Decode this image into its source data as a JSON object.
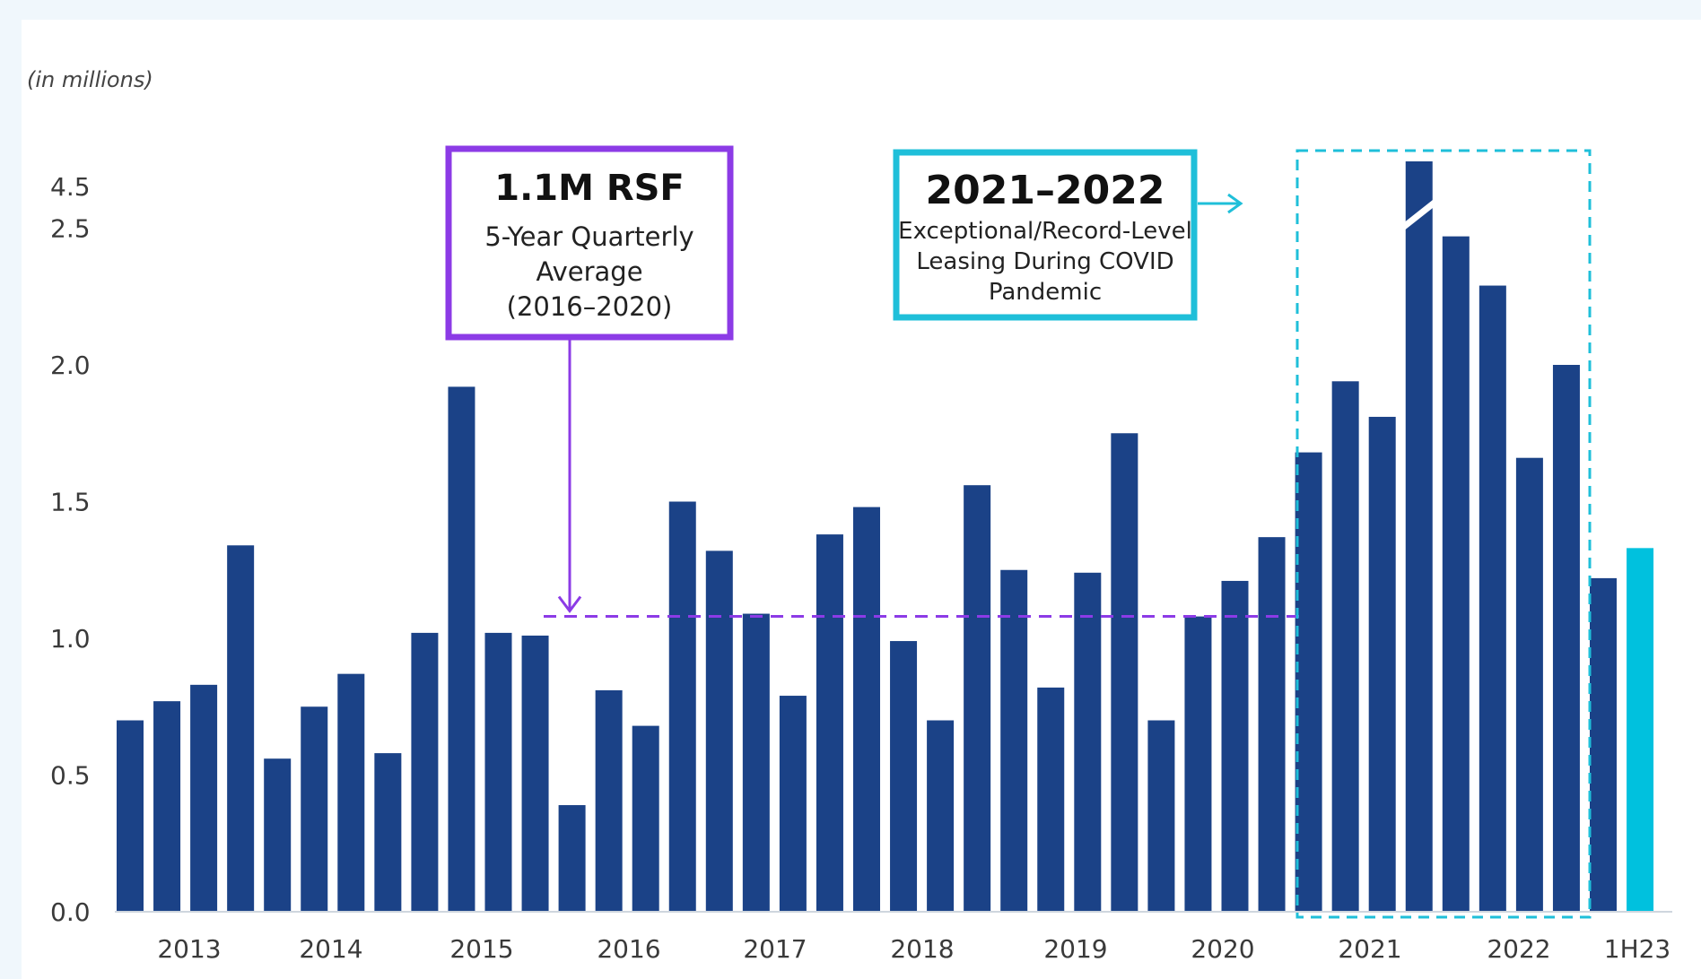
{
  "chart_data": {
    "type": "bar",
    "unit_label": "(in millions)",
    "y_ticks": [
      {
        "label": "0.0",
        "value": 0.0
      },
      {
        "label": "0.5",
        "value": 0.5
      },
      {
        "label": "1.0",
        "value": 1.0
      },
      {
        "label": "1.5",
        "value": 1.5
      },
      {
        "label": "2.0",
        "value": 2.0
      },
      {
        "label": "2.5",
        "value": 2.5
      },
      {
        "label": "4.5",
        "value": 4.5
      }
    ],
    "axis_break": true,
    "ylim": [
      0,
      4.5
    ],
    "year_labels": [
      "2013",
      "2014",
      "2015",
      "2016",
      "2017",
      "2018",
      "2019",
      "2020",
      "2021",
      "2022",
      "1H23"
    ],
    "values": [
      0.7,
      0.77,
      0.83,
      1.34,
      0.56,
      0.75,
      0.87,
      0.58,
      1.02,
      1.92,
      1.02,
      1.01,
      0.39,
      0.81,
      0.68,
      1.5,
      1.32,
      1.09,
      0.79,
      1.38,
      1.48,
      0.99,
      0.7,
      1.56,
      1.25,
      0.82,
      1.24,
      1.75,
      0.7,
      1.08,
      1.21,
      1.37,
      1.68,
      1.94,
      1.81,
      4.4,
      2.47,
      2.29,
      1.66,
      2.0,
      1.22,
      1.33
    ],
    "highlight_color": "#00c1de",
    "bar_color": "#1b4287",
    "average_line": {
      "value": 1.1,
      "color": "#8c3be6"
    },
    "annotations": {
      "average": {
        "title": "1.1M RSF",
        "lines": [
          "5-Year Quarterly",
          "Average",
          "(2016–2020)"
        ],
        "color": "#8c3be6"
      },
      "covid": {
        "title": "2021–2022",
        "lines": [
          "Exceptional/Record-Level",
          "Leasing During COVID",
          "Pandemic"
        ],
        "color": "#1fbfd9"
      }
    }
  }
}
